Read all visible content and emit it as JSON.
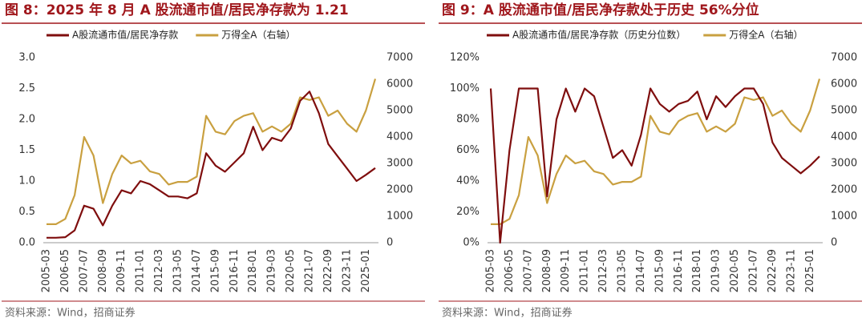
{
  "chart_data": [
    {
      "type": "line",
      "title": "图 8：2025 年 8 月 A 股流通市值/居民净存款为 1.21",
      "source": "资料来源：Wind，招商证券",
      "categories": [
        "2005-03",
        null,
        "2006-05",
        null,
        "2007-07",
        null,
        "2008-09",
        null,
        "2009-11",
        null,
        "2011-01",
        null,
        "2012-03",
        null,
        "2013-05",
        null,
        "2014-07",
        null,
        "2015-09",
        null,
        "2016-11",
        null,
        "2018-01",
        null,
        "2019-03",
        null,
        "2020-05",
        null,
        "2021-07",
        null,
        "2022-09",
        null,
        "2023-11",
        null,
        "2025-01",
        null
      ],
      "series": [
        {
          "name": "A股流通市值/居民净存款",
          "color": "#7f0e0e",
          "values": [
            0.08,
            0.08,
            0.09,
            0.2,
            0.6,
            0.55,
            0.28,
            0.6,
            0.85,
            0.8,
            1.0,
            0.95,
            0.85,
            0.75,
            0.75,
            0.72,
            0.8,
            1.45,
            1.25,
            1.15,
            1.3,
            1.45,
            1.88,
            1.5,
            1.7,
            1.65,
            1.85,
            2.3,
            2.45,
            2.1,
            1.6,
            1.4,
            1.2,
            1.0,
            1.1,
            1.21
          ]
        },
        {
          "name": "万得全A（右轴）",
          "color": "#c9a040",
          "axis": "y2",
          "values": [
            700,
            700,
            900,
            1800,
            4000,
            3300,
            1500,
            2600,
            3300,
            3000,
            3100,
            2700,
            2600,
            2200,
            2300,
            2300,
            2500,
            4800,
            4200,
            4100,
            4600,
            4800,
            4900,
            4200,
            4400,
            4200,
            4500,
            5500,
            5400,
            5500,
            4800,
            5000,
            4500,
            4200,
            5000,
            6200
          ]
        }
      ],
      "ylim": [
        0,
        3
      ],
      "yticks": [
        {
          "value": 0,
          "label": "0.0"
        },
        0.5,
        {
          "value": 1,
          "label": "1.0"
        },
        1.5,
        {
          "value": 2,
          "label": "2.0"
        },
        2.5,
        {
          "value": 3,
          "label": "3.0"
        }
      ],
      "y2lim": [
        0,
        7000
      ],
      "y2ticks": [
        0,
        1000,
        2000,
        3000,
        4000,
        5000,
        6000,
        7000
      ]
    },
    {
      "type": "line",
      "title": "图 9：A 股流通市值/居民净存款处于历史 56%分位",
      "source": "资料来源：Wind，招商证券",
      "categories": [
        "2005-03",
        null,
        "2006-05",
        null,
        "2007-07",
        null,
        "2008-09",
        null,
        "2009-11",
        null,
        "2011-01",
        null,
        "2012-03",
        null,
        "2013-05",
        null,
        "2014-07",
        null,
        "2015-09",
        null,
        "2016-11",
        null,
        "2018-01",
        null,
        "2019-03",
        null,
        "2020-05",
        null,
        "2021-07",
        null,
        "2022-09",
        null,
        "2023-11",
        null,
        "2025-01",
        null
      ],
      "series": [
        {
          "name": "A股流通市值/居民净存款（历史分位数）",
          "color": "#7f0e0e",
          "values": [
            100,
            0,
            60,
            100,
            100,
            100,
            30,
            80,
            100,
            85,
            100,
            95,
            75,
            55,
            60,
            50,
            70,
            100,
            90,
            85,
            90,
            92,
            98,
            80,
            95,
            88,
            95,
            100,
            100,
            90,
            65,
            55,
            50,
            45,
            50,
            56
          ]
        },
        {
          "name": "万得全A（右轴）",
          "color": "#c9a040",
          "axis": "y2",
          "values": [
            700,
            700,
            900,
            1800,
            4000,
            3300,
            1500,
            2600,
            3300,
            3000,
            3100,
            2700,
            2600,
            2200,
            2300,
            2300,
            2500,
            4800,
            4200,
            4100,
            4600,
            4800,
            4900,
            4200,
            4400,
            4200,
            4500,
            5500,
            5400,
            5500,
            4800,
            5000,
            4500,
            4200,
            5000,
            6200
          ]
        }
      ],
      "ylim": [
        0,
        120
      ],
      "yticks": [
        {
          "value": 0,
          "label": "0%"
        },
        {
          "value": 20,
          "label": "20%"
        },
        {
          "value": 40,
          "label": "40%"
        },
        {
          "value": 60,
          "label": "60%"
        },
        {
          "value": 80,
          "label": "80%"
        },
        {
          "value": 100,
          "label": "100%"
        },
        {
          "value": 120,
          "label": "120%"
        }
      ],
      "y2lim": [
        0,
        7000
      ],
      "y2ticks": [
        0,
        1000,
        2000,
        3000,
        4000,
        5000,
        6000,
        7000
      ]
    }
  ]
}
